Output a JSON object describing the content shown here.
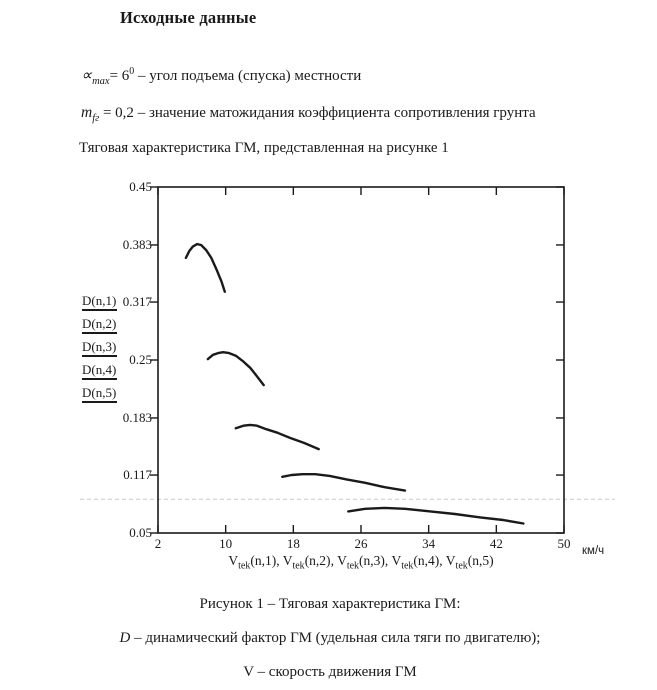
{
  "doc": {
    "title": "Исходные данные",
    "params": [
      {
        "symbol": "∝",
        "sub": "max",
        "mid": "= 6",
        "sup": "0",
        "desc": " – угол подъема (спуска) местности"
      },
      {
        "symbol": "m",
        "sub": "fг",
        "mid": " = 0,2",
        "sup": "",
        "desc": " – значение матожидания коэффициента сопротивления грунта"
      }
    ],
    "intro": "Тяговая характеристика ГМ, представленная на рисунке 1",
    "caption": {
      "line1": "Рисунок 1 – Тяговая характеристика ГМ:",
      "line2_symbol": "D",
      "line2_rest": " – динамический фактор ГМ (удельная сила тяги по двигателю);",
      "line3": "V – скорость движения ГМ"
    }
  },
  "chart_data": {
    "type": "line",
    "title": "",
    "xlabel": "Vtek(n,1), Vtek(n,2), Vtek(n,3), Vtek(n,4), Vtek(n,5)",
    "ylabel": "D(n,1) D(n,2) D(n,3) D(n,4) D(n,5)",
    "x_unit": "км/ч",
    "xlim": [
      2,
      50
    ],
    "ylim": [
      0.05,
      0.45
    ],
    "x_ticks": [
      2,
      10,
      18,
      26,
      34,
      42,
      50
    ],
    "y_ticks": [
      0.45,
      0.383,
      0.317,
      0.25,
      0.183,
      0.117,
      0.05
    ],
    "grid": false,
    "legend_position": "left",
    "line_color": "#1a1a1a",
    "marker_line": {
      "y": 0.089,
      "style": "dashed",
      "color": "#c8c8c8"
    },
    "legend": [
      "D(n,1)",
      "D(n,2)",
      "D(n,3)",
      "D(n,4)",
      "D(n,5)"
    ],
    "x_axis_label": {
      "separator": ", ",
      "entries": [
        {
          "base": "V",
          "sub": "tek",
          "args": "(n,1)"
        },
        {
          "base": "V",
          "sub": "tek",
          "args": "(n,2)"
        },
        {
          "base": "V",
          "sub": "tek",
          "args": "(n,3)"
        },
        {
          "base": "V",
          "sub": "tek",
          "args": "(n,4)"
        },
        {
          "base": "V",
          "sub": "tek",
          "args": "(n,5)"
        }
      ]
    },
    "series": [
      {
        "name": "D(n,1)",
        "points": [
          [
            5.3,
            0.368
          ],
          [
            5.7,
            0.376
          ],
          [
            6.1,
            0.381
          ],
          [
            6.6,
            0.384
          ],
          [
            7.1,
            0.383
          ],
          [
            7.7,
            0.377
          ],
          [
            8.3,
            0.368
          ],
          [
            8.9,
            0.355
          ],
          [
            9.5,
            0.341
          ],
          [
            9.9,
            0.329
          ]
        ]
      },
      {
        "name": "D(n,2)",
        "points": [
          [
            7.9,
            0.251
          ],
          [
            8.5,
            0.256
          ],
          [
            9.1,
            0.258
          ],
          [
            9.7,
            0.259
          ],
          [
            10.4,
            0.258
          ],
          [
            11.2,
            0.255
          ],
          [
            12.0,
            0.249
          ],
          [
            12.9,
            0.241
          ],
          [
            13.7,
            0.231
          ],
          [
            14.5,
            0.221
          ]
        ]
      },
      {
        "name": "D(n,3)",
        "points": [
          [
            11.2,
            0.171
          ],
          [
            12.1,
            0.174
          ],
          [
            12.9,
            0.175
          ],
          [
            13.7,
            0.174
          ],
          [
            14.8,
            0.17
          ],
          [
            16.1,
            0.166
          ],
          [
            17.6,
            0.16
          ],
          [
            19.3,
            0.154
          ],
          [
            21.0,
            0.147
          ]
        ]
      },
      {
        "name": "D(n,4)",
        "points": [
          [
            16.7,
            0.115
          ],
          [
            17.8,
            0.117
          ],
          [
            19.1,
            0.118
          ],
          [
            20.6,
            0.118
          ],
          [
            22.3,
            0.116
          ],
          [
            24.3,
            0.112
          ],
          [
            26.5,
            0.108
          ],
          [
            28.8,
            0.103
          ],
          [
            31.2,
            0.099
          ]
        ]
      },
      {
        "name": "D(n,5)",
        "points": [
          [
            24.5,
            0.075
          ],
          [
            26.5,
            0.078
          ],
          [
            28.8,
            0.079
          ],
          [
            31.2,
            0.078
          ],
          [
            34.2,
            0.075
          ],
          [
            37.1,
            0.072
          ],
          [
            40.1,
            0.068
          ],
          [
            42.8,
            0.065
          ],
          [
            45.2,
            0.061
          ]
        ]
      }
    ]
  }
}
